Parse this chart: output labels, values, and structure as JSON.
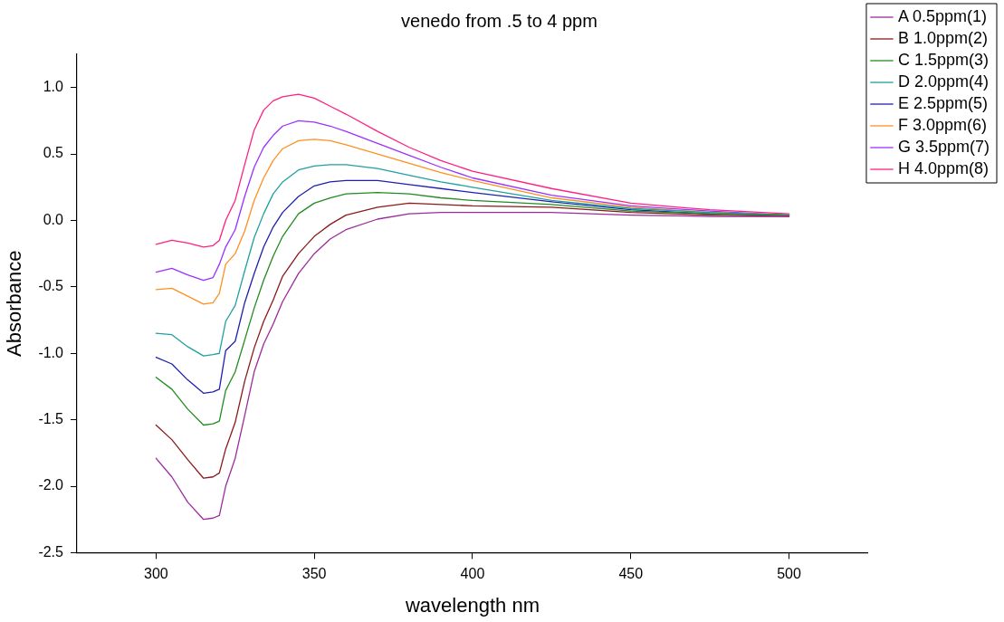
{
  "chart_data": {
    "type": "line",
    "title": "venedo from .5 to 4 ppm",
    "xlabel": "wavelength nm",
    "ylabel": "Absorbance",
    "x": [
      300,
      305,
      310,
      315,
      318,
      320,
      322,
      325,
      328,
      331,
      334,
      337,
      340,
      345,
      350,
      355,
      360,
      370,
      380,
      390,
      400,
      425,
      450,
      475,
      500
    ],
    "series": [
      {
        "name": "A 0.5ppm(1)",
        "color": "#9b2c9b",
        "values": [
          -1.79,
          -1.93,
          -2.12,
          -2.25,
          -2.24,
          -2.22,
          -2.0,
          -1.79,
          -1.47,
          -1.14,
          -0.93,
          -0.78,
          -0.61,
          -0.4,
          -0.25,
          -0.14,
          -0.07,
          0.01,
          0.05,
          0.06,
          0.06,
          0.06,
          0.04,
          0.03,
          0.03
        ]
      },
      {
        "name": "B 1.0ppm(2)",
        "color": "#8b1a1a",
        "values": [
          -1.54,
          -1.65,
          -1.8,
          -1.94,
          -1.93,
          -1.9,
          -1.72,
          -1.52,
          -1.21,
          -0.96,
          -0.76,
          -0.6,
          -0.42,
          -0.25,
          -0.12,
          -0.03,
          0.04,
          0.1,
          0.13,
          0.12,
          0.11,
          0.1,
          0.06,
          0.04,
          0.03
        ]
      },
      {
        "name": "C 1.5ppm(3)",
        "color": "#228b22",
        "values": [
          -1.18,
          -1.27,
          -1.42,
          -1.54,
          -1.53,
          -1.51,
          -1.28,
          -1.14,
          -0.9,
          -0.66,
          -0.45,
          -0.27,
          -0.12,
          0.05,
          0.13,
          0.17,
          0.2,
          0.21,
          0.2,
          0.17,
          0.15,
          0.12,
          0.07,
          0.05,
          0.04
        ]
      },
      {
        "name": "D 2.0ppm(4)",
        "color": "#20a0a0",
        "values": [
          -0.85,
          -0.86,
          -0.95,
          -1.02,
          -1.01,
          -1.0,
          -0.76,
          -0.64,
          -0.38,
          -0.13,
          0.05,
          0.2,
          0.29,
          0.38,
          0.41,
          0.42,
          0.42,
          0.39,
          0.34,
          0.29,
          0.25,
          0.15,
          0.09,
          0.06,
          0.04
        ]
      },
      {
        "name": "E 2.5ppm(5)",
        "color": "#2020b0",
        "values": [
          -1.03,
          -1.08,
          -1.2,
          -1.3,
          -1.29,
          -1.27,
          -0.98,
          -0.91,
          -0.62,
          -0.4,
          -0.2,
          -0.05,
          0.06,
          0.18,
          0.26,
          0.29,
          0.3,
          0.3,
          0.27,
          0.24,
          0.21,
          0.14,
          0.08,
          0.05,
          0.04
        ]
      },
      {
        "name": "F 3.0ppm(6)",
        "color": "#ff9020",
        "values": [
          -0.52,
          -0.51,
          -0.57,
          -0.63,
          -0.62,
          -0.55,
          -0.33,
          -0.25,
          -0.08,
          0.15,
          0.32,
          0.45,
          0.54,
          0.6,
          0.61,
          0.6,
          0.57,
          0.5,
          0.43,
          0.36,
          0.3,
          0.17,
          0.1,
          0.06,
          0.04
        ]
      },
      {
        "name": "G 3.5ppm(7)",
        "color": "#9b30ff",
        "values": [
          -0.39,
          -0.36,
          -0.41,
          -0.45,
          -0.43,
          -0.33,
          -0.2,
          -0.07,
          0.18,
          0.4,
          0.55,
          0.64,
          0.71,
          0.75,
          0.74,
          0.71,
          0.67,
          0.58,
          0.49,
          0.4,
          0.32,
          0.19,
          0.11,
          0.07,
          0.04
        ]
      },
      {
        "name": "H 4.0ppm(8)",
        "color": "#ff2080",
        "values": [
          -0.18,
          -0.15,
          -0.17,
          -0.2,
          -0.19,
          -0.15,
          0.0,
          0.15,
          0.42,
          0.68,
          0.83,
          0.9,
          0.93,
          0.95,
          0.92,
          0.86,
          0.8,
          0.67,
          0.55,
          0.45,
          0.37,
          0.24,
          0.13,
          0.08,
          0.05
        ]
      }
    ],
    "xlim": [
      275,
      525
    ],
    "xticks": [
      300,
      350,
      400,
      450,
      500
    ],
    "ylim": [
      -2.5,
      1.25
    ],
    "yticks": [
      -2.5,
      {
        "value": -2,
        "label": "-2.0"
      },
      -1.5,
      {
        "value": -1,
        "label": "-1.0"
      },
      -0.5,
      {
        "value": 0,
        "label": "0.0"
      },
      0.5,
      {
        "value": 1,
        "label": "1.0"
      }
    ],
    "grid": false,
    "legend": "top right",
    "marker": "none",
    "line_style": "solid"
  }
}
